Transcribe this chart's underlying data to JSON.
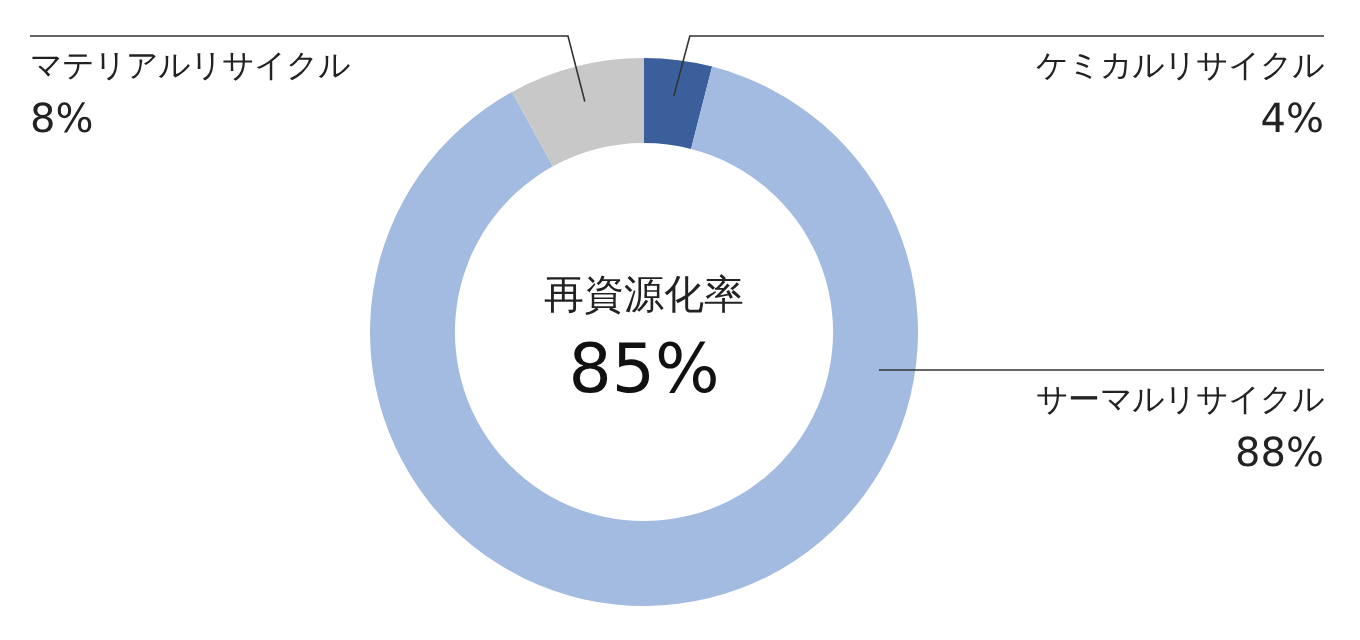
{
  "chart_data": {
    "type": "donut",
    "title": "再資源化率",
    "annotations": [
      "85%"
    ],
    "categories": [
      "ケミカルリサイクル",
      "サーマルリサイクル",
      "マテリアルリサイクル"
    ],
    "values": [
      4,
      88,
      8
    ],
    "value_labels": [
      "4%",
      "88%",
      "8%"
    ],
    "colors": [
      "#3a5f9a",
      "#a3bbe0",
      "#c8c8c8"
    ]
  }
}
